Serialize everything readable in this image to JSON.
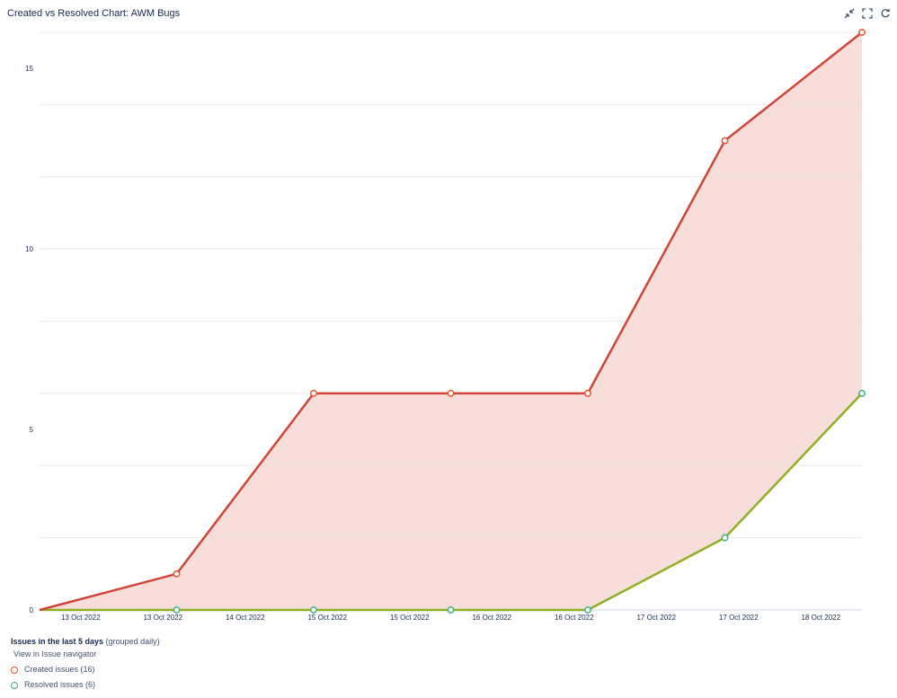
{
  "title": "Created vs Resolved Chart: AWM Bugs",
  "toolbar": {
    "icons": [
      "minimize-icon",
      "fullscreen-icon",
      "refresh-icon"
    ]
  },
  "footer": {
    "heading_bold": "Issues in the last 5 days",
    "heading_rest": " (grouped daily)",
    "link": "View in Issue navigator",
    "legend": [
      {
        "label": "Created issues (16)",
        "color": "#e5552e"
      },
      {
        "label": "Resolved issues (6)",
        "color": "#36b37e"
      }
    ]
  },
  "colors": {
    "created_line": "#d04437",
    "created_fill": "#f6d8d5",
    "resolved_line": "#8eb021",
    "grid": "#e8e8e8"
  },
  "chart_data": {
    "type": "area",
    "x_tick_labels": [
      "13 Oct 2022",
      "13 Oct 2022",
      "14 Oct 2022",
      "15 Oct 2022",
      "15 Oct 2022",
      "16 Oct 2022",
      "16 Oct 2022",
      "17 Oct 2022",
      "17 Oct 2022",
      "18 Oct 2022"
    ],
    "y_ticks": [
      0,
      5,
      10,
      15
    ],
    "ylim": [
      0,
      16
    ],
    "grid": true,
    "series": [
      {
        "name": "Created issues (16)",
        "points": [
          [
            0,
            0
          ],
          [
            1,
            1
          ],
          [
            2,
            6
          ],
          [
            3,
            6
          ],
          [
            4,
            6
          ],
          [
            5,
            13
          ],
          [
            6,
            16
          ]
        ]
      },
      {
        "name": "Resolved issues (6)",
        "points": [
          [
            0,
            0
          ],
          [
            1,
            0
          ],
          [
            2,
            0
          ],
          [
            3,
            0
          ],
          [
            4,
            0
          ],
          [
            5,
            2
          ],
          [
            6,
            6
          ]
        ]
      }
    ]
  }
}
